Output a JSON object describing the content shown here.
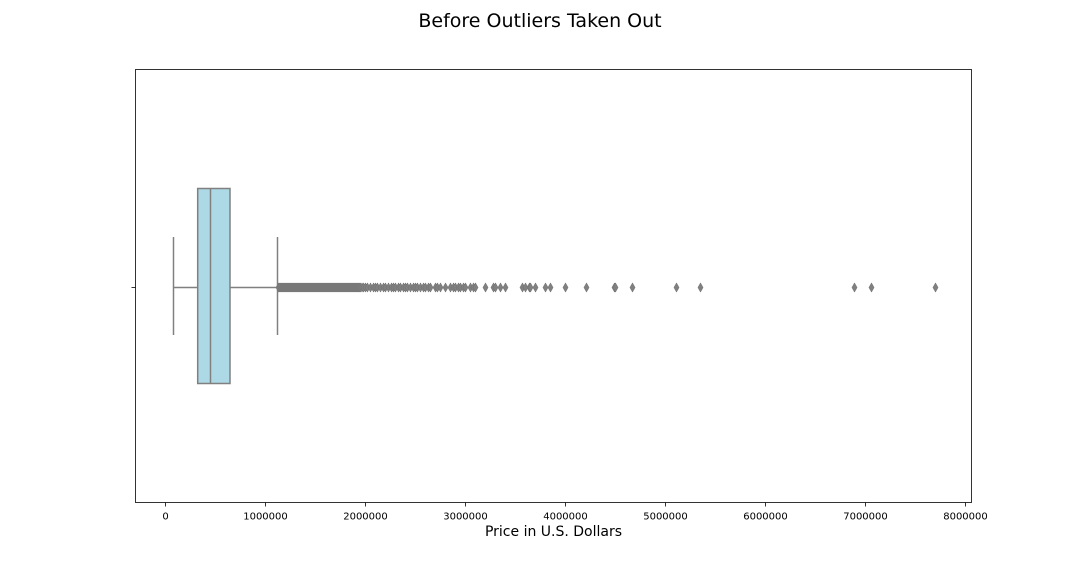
{
  "chart_data": {
    "type": "box",
    "orientation": "horizontal",
    "title": "Before Outliers Taken Out",
    "xlabel": "Price in U.S. Dollars",
    "ylabel": "",
    "xlim": [
      -300000,
      8060000
    ],
    "xticks": [
      0,
      1000000,
      2000000,
      3000000,
      4000000,
      5000000,
      6000000,
      7000000,
      8000000
    ],
    "xtick_labels": [
      "0",
      "1000000",
      "2000000",
      "3000000",
      "4000000",
      "5000000",
      "6000000",
      "7000000",
      "8000000"
    ],
    "grid": false,
    "box": {
      "whisker_low": 80000,
      "q1": 322000,
      "median": 450000,
      "q3": 645000,
      "whisker_high": 1120000,
      "fill_color": "#add8e6",
      "line_color": "#808080"
    },
    "outliers": [
      1130000,
      1140000,
      1150000,
      1160000,
      1170000,
      1180000,
      1190000,
      1200000,
      1210000,
      1220000,
      1230000,
      1240000,
      1250000,
      1260000,
      1270000,
      1280000,
      1290000,
      1300000,
      1310000,
      1320000,
      1330000,
      1340000,
      1350000,
      1360000,
      1370000,
      1380000,
      1390000,
      1400000,
      1410000,
      1420000,
      1430000,
      1440000,
      1450000,
      1460000,
      1470000,
      1480000,
      1490000,
      1500000,
      1510000,
      1520000,
      1530000,
      1540000,
      1550000,
      1560000,
      1570000,
      1580000,
      1590000,
      1600000,
      1610000,
      1620000,
      1630000,
      1640000,
      1650000,
      1660000,
      1670000,
      1680000,
      1690000,
      1700000,
      1710000,
      1720000,
      1730000,
      1740000,
      1750000,
      1760000,
      1770000,
      1780000,
      1790000,
      1800000,
      1810000,
      1820000,
      1830000,
      1840000,
      1850000,
      1860000,
      1870000,
      1880000,
      1890000,
      1900000,
      1910000,
      1920000,
      1930000,
      1940000,
      1950000,
      1965000,
      1980000,
      2000000,
      2020000,
      2050000,
      2080000,
      2100000,
      2120000,
      2150000,
      2180000,
      2200000,
      2230000,
      2260000,
      2280000,
      2300000,
      2330000,
      2350000,
      2380000,
      2400000,
      2420000,
      2450000,
      2480000,
      2500000,
      2520000,
      2550000,
      2580000,
      2600000,
      2630000,
      2650000,
      2700000,
      2720000,
      2750000,
      2800000,
      2850000,
      2880000,
      2900000,
      2930000,
      2950000,
      2980000,
      3000000,
      3050000,
      3080000,
      3100000,
      3200000,
      3280000,
      3300000,
      3350000,
      3400000,
      3570000,
      3600000,
      3640000,
      3650000,
      3700000,
      3800000,
      3850000,
      4000000,
      4210000,
      4490000,
      4500000,
      4670000,
      5110000,
      5350000,
      6890000,
      7060000,
      7700000
    ]
  }
}
